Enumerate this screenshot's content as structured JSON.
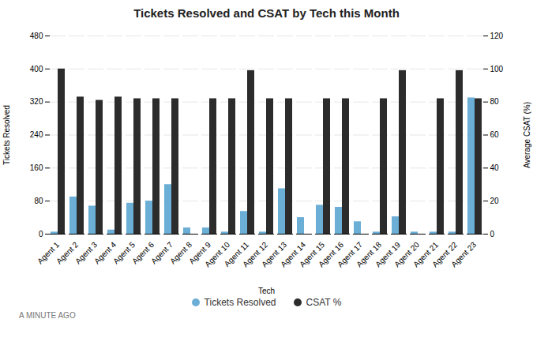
{
  "chart_data": {
    "type": "bar",
    "title": "Tickets Resolved and CSAT by Tech this Month",
    "xlabel": "Tech",
    "ylabel": "Tickets Resolved",
    "y2label": "Average CSAT (%)",
    "categories": [
      "Agent 1",
      "Agent 2",
      "Agent 3",
      "Agent 4",
      "Agent 5",
      "Agent 6",
      "Agent 7",
      "Agent 8",
      "Agent 9",
      "Agent 10",
      "Agent 11",
      "Agent 12",
      "Agent 13",
      "Agent 14",
      "Agent 15",
      "Agent 16",
      "Agent 17",
      "Agent 18",
      "Agent 19",
      "Agent 20",
      "Agent 21",
      "Agent 22",
      "Agent 23"
    ],
    "series": [
      {
        "name": "Tickets Resolved",
        "color": "#6baed6",
        "values": [
          5,
          90,
          68,
          10,
          75,
          80,
          120,
          15,
          15,
          5,
          55,
          5,
          110,
          40,
          70,
          65,
          30,
          5,
          42,
          5,
          5,
          5,
          330
        ]
      },
      {
        "name": "CSAT %",
        "color": "#2c2c2c",
        "axis": "y2",
        "values": [
          100,
          83,
          81,
          83,
          82,
          82,
          82,
          0,
          82,
          82,
          99,
          82,
          82,
          0,
          82,
          82,
          0,
          82,
          99,
          0,
          82,
          99,
          82
        ]
      }
    ],
    "ylim": [
      0,
      480
    ],
    "yticks": [
      0,
      80,
      160,
      240,
      320,
      400,
      480
    ],
    "y2lim": [
      0,
      120
    ],
    "y2ticks": [
      0,
      20,
      40,
      60,
      80,
      100,
      120
    ],
    "grid": true,
    "legend": "bottom",
    "caption": "A MINUTE AGO"
  }
}
